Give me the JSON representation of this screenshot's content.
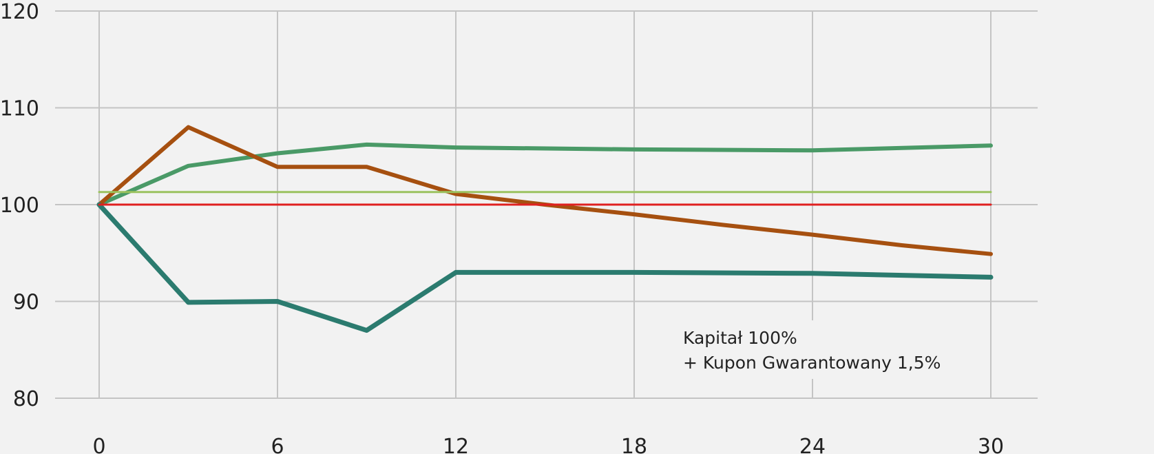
{
  "chart_data": {
    "type": "line",
    "title": "",
    "xlabel": "",
    "ylabel": "",
    "xlim": [
      0,
      30
    ],
    "ylim": [
      80,
      120
    ],
    "x_ticks": [
      0,
      6,
      12,
      18,
      24,
      30
    ],
    "y_ticks": [
      80,
      90,
      100,
      110,
      120
    ],
    "x_tick_labels": [
      "0",
      "6",
      "12",
      "18",
      "24",
      "30"
    ],
    "y_tick_labels": [
      "80",
      "90",
      "100",
      "110",
      "120"
    ],
    "grid": true,
    "legend": "none",
    "annotation": {
      "line1": "Kapitał 100%",
      "line2": "+ Kupon Gwarantowany 1,5%"
    },
    "series": [
      {
        "color": "#4a9a67",
        "width": 6,
        "x": [
          0,
          3,
          6,
          9,
          12,
          18,
          24,
          30
        ],
        "y": [
          100,
          104,
          105.3,
          106.2,
          105.9,
          105.7,
          105.6,
          106.1
        ]
      },
      {
        "color": "#a65010",
        "width": 6,
        "x": [
          0,
          3,
          6,
          9,
          12,
          15,
          18,
          21,
          24,
          27,
          30
        ],
        "y": [
          100,
          108,
          103.9,
          103.9,
          101.1,
          100,
          99,
          97.9,
          96.9,
          95.8,
          94.9
        ]
      },
      {
        "color": "#2b7b6f",
        "width": 7,
        "x": [
          0,
          3,
          6,
          9,
          12,
          18,
          24,
          30
        ],
        "y": [
          100,
          89.9,
          90,
          87,
          93,
          93,
          92.9,
          92.5
        ]
      },
      {
        "color": "#9bc25f",
        "width": 3,
        "x": [
          0,
          30
        ],
        "y": [
          101.3,
          101.3
        ]
      },
      {
        "color": "#e02020",
        "width": 3,
        "x": [
          0,
          30
        ],
        "y": [
          100,
          100
        ]
      }
    ]
  }
}
